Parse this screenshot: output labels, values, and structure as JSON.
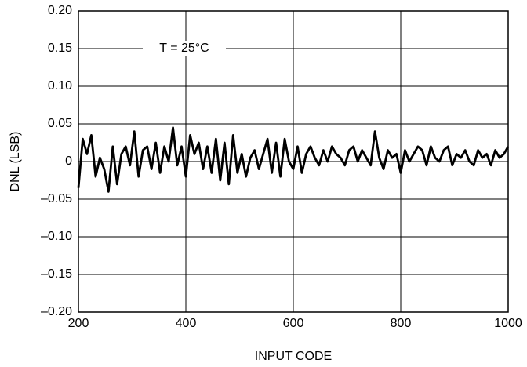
{
  "chart_data": {
    "type": "line",
    "x_label": "INPUT CODE",
    "y_label": "DNL (LSB)",
    "annotation": "T = 25°C",
    "x": [
      200,
      208,
      216,
      224,
      232,
      240,
      248,
      256,
      264,
      272,
      280,
      288,
      296,
      304,
      312,
      320,
      328,
      336,
      344,
      352,
      360,
      368,
      376,
      384,
      392,
      400,
      408,
      416,
      424,
      432,
      440,
      448,
      456,
      464,
      472,
      480,
      488,
      496,
      504,
      512,
      520,
      528,
      536,
      544,
      552,
      560,
      568,
      576,
      584,
      592,
      600,
      608,
      616,
      624,
      632,
      640,
      648,
      656,
      664,
      672,
      680,
      688,
      696,
      704,
      712,
      720,
      728,
      736,
      744,
      752,
      760,
      768,
      776,
      784,
      792,
      800,
      808,
      816,
      824,
      832,
      840,
      848,
      856,
      864,
      872,
      880,
      888,
      896,
      904,
      912,
      920,
      928,
      936,
      944,
      952,
      960,
      968,
      976,
      984,
      992,
      1000
    ],
    "series": [
      {
        "name": "DNL",
        "color": "#000000",
        "values": [
          -0.035,
          0.03,
          0.01,
          0.035,
          -0.02,
          0.005,
          -0.01,
          -0.04,
          0.02,
          -0.03,
          0.01,
          0.02,
          -0.005,
          0.04,
          -0.02,
          0.015,
          0.02,
          -0.01,
          0.025,
          -0.015,
          0.02,
          0.0,
          0.045,
          -0.005,
          0.02,
          -0.02,
          0.035,
          0.01,
          0.025,
          -0.01,
          0.02,
          -0.015,
          0.03,
          -0.025,
          0.025,
          -0.03,
          0.035,
          -0.015,
          0.01,
          -0.02,
          0.005,
          0.015,
          -0.01,
          0.01,
          0.03,
          -0.015,
          0.025,
          -0.02,
          0.03,
          0.0,
          -0.01,
          0.02,
          -0.015,
          0.01,
          0.02,
          0.005,
          -0.005,
          0.015,
          0.0,
          0.02,
          0.01,
          0.005,
          -0.005,
          0.015,
          0.02,
          0.0,
          0.015,
          0.005,
          -0.005,
          0.04,
          0.005,
          -0.01,
          0.015,
          0.005,
          0.01,
          -0.015,
          0.015,
          0.0,
          0.01,
          0.02,
          0.015,
          -0.005,
          0.02,
          0.005,
          0.0,
          0.015,
          0.02,
          -0.005,
          0.01,
          0.005,
          0.015,
          0.0,
          -0.005,
          0.015,
          0.005,
          0.01,
          -0.005,
          0.015,
          0.005,
          0.01,
          0.02
        ]
      }
    ],
    "xlim": [
      200,
      1000
    ],
    "xticks": [
      200,
      400,
      600,
      800,
      1000
    ],
    "ylim": [
      -0.2,
      0.2
    ],
    "yticks": [
      {
        "value": 0.2,
        "label": "0.20"
      },
      0.15,
      {
        "value": 0.1,
        "label": "0.10"
      },
      0.05,
      0,
      {
        "value": -0.05,
        "label": "–0.05"
      },
      {
        "value": -0.1,
        "label": "–0.10"
      },
      {
        "value": -0.15,
        "label": "–0.15"
      },
      {
        "value": -0.2,
        "label": "–0.20"
      }
    ],
    "grid": true
  }
}
